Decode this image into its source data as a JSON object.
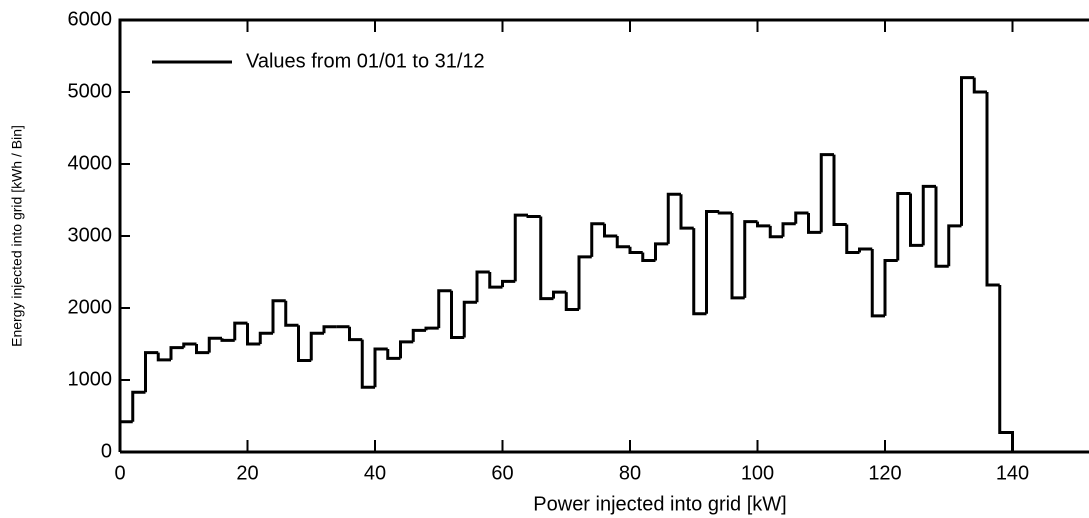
{
  "chart_data": {
    "type": "histogram",
    "xlabel": "Power injected into grid [kW]",
    "ylabel": "Energy   injected   into   grid   [kWh   /   Bin]",
    "bins": [
      0,
      2,
      4,
      6,
      8,
      10,
      12,
      14,
      16,
      18,
      20,
      22,
      24,
      26,
      28,
      30,
      32,
      34,
      36,
      38,
      40,
      42,
      44,
      46,
      48,
      50,
      52,
      54,
      56,
      58,
      60,
      62,
      64,
      66,
      68,
      70,
      72,
      74,
      76,
      78,
      80,
      82,
      84,
      86,
      88,
      90,
      92,
      94,
      96,
      98,
      100,
      102,
      104,
      106,
      108,
      110,
      112,
      114,
      116,
      118,
      120,
      122,
      124,
      126,
      128,
      130,
      132,
      134,
      136,
      138,
      140
    ],
    "series": [
      {
        "name": "Values from 01/01 to 31/12",
        "color": "#000000",
        "values": [
          420,
          830,
          1380,
          1280,
          1450,
          1500,
          1380,
          1580,
          1550,
          1790,
          1500,
          1650,
          2100,
          1760,
          1270,
          1650,
          1740,
          1740,
          1560,
          900,
          1430,
          1300,
          1530,
          1690,
          1720,
          2240,
          1590,
          2080,
          2500,
          2290,
          2370,
          3290,
          3270,
          2130,
          2220,
          1980,
          2710,
          3170,
          3000,
          2850,
          2770,
          2660,
          2890,
          3580,
          3110,
          1920,
          3340,
          3320,
          2140,
          3200,
          3140,
          2990,
          3170,
          3320,
          3050,
          4130,
          3160,
          2770,
          2820,
          1890,
          2660,
          3590,
          2870,
          3690,
          2580,
          3140,
          5200,
          5000,
          2320,
          270
        ]
      }
    ],
    "xlim": [
      0,
      152
    ],
    "ylim": [
      0,
      6000
    ],
    "xticks": [
      0,
      20,
      40,
      60,
      80,
      100,
      120,
      140
    ],
    "yticks": [
      0,
      1000,
      2000,
      3000,
      4000,
      5000,
      6000
    ],
    "legend": "upper left"
  }
}
